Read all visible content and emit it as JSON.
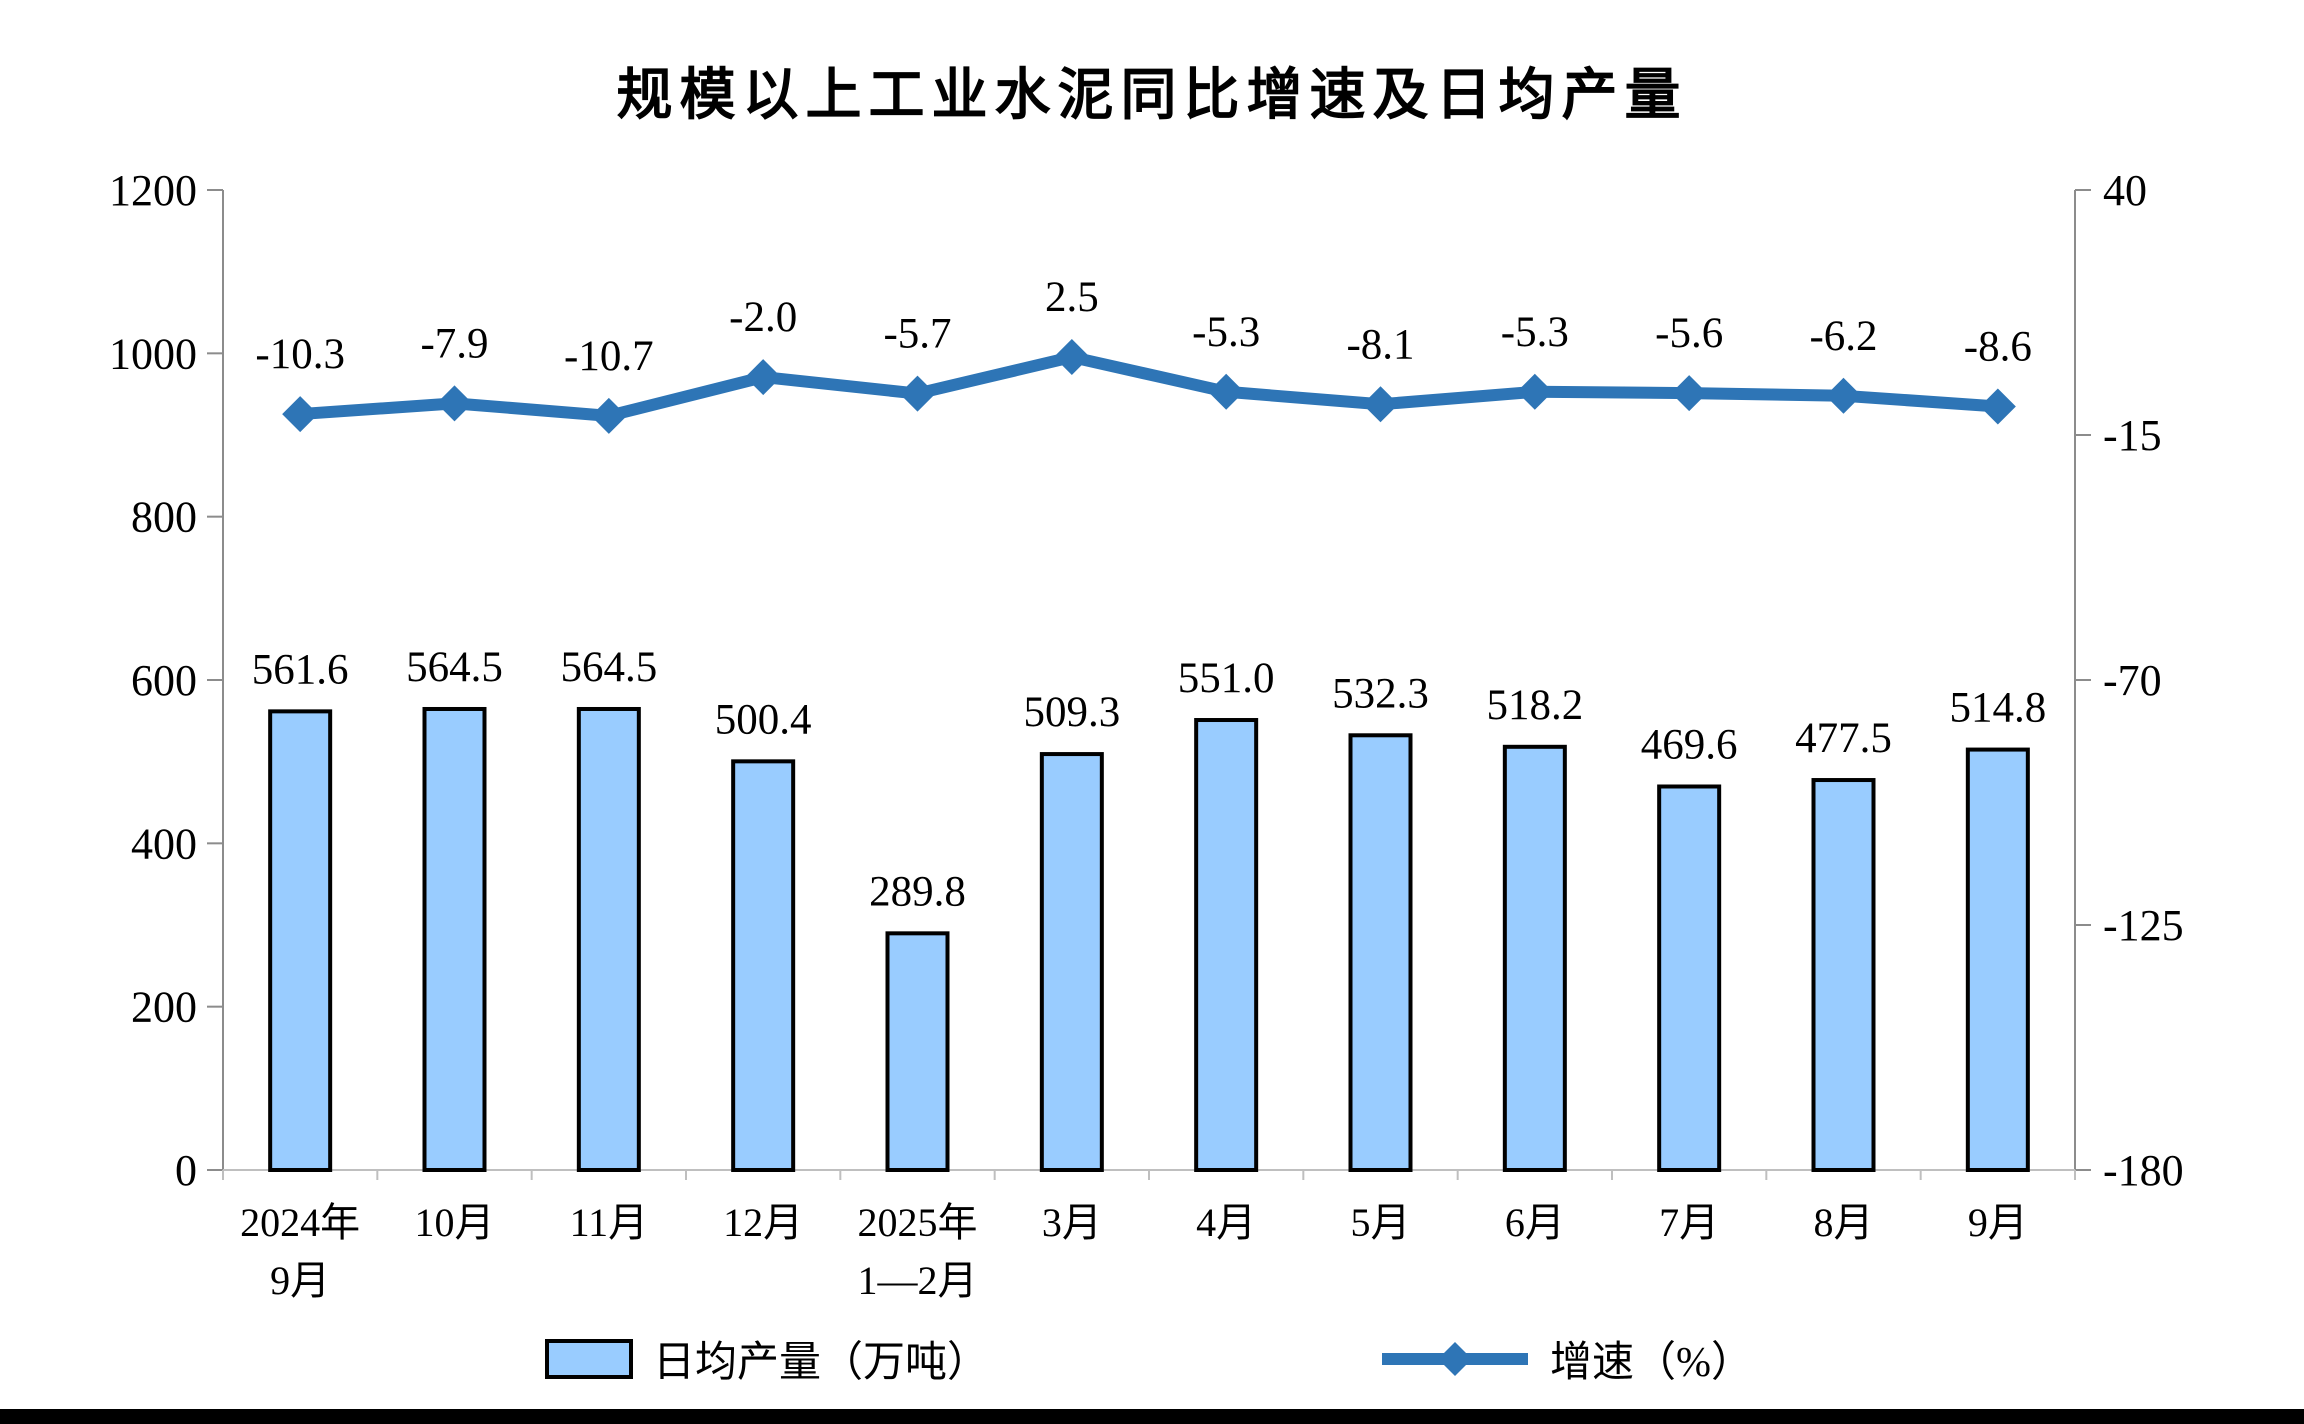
{
  "title": "规模以上工业水泥同比增速及日均产量",
  "legend": {
    "bar_label": "日均产量（万吨）",
    "line_label": "增速（%）"
  },
  "colors": {
    "bar_fill": "#99CCFF",
    "bar_border": "#000000",
    "line": "#2E75B6",
    "side_axis": "#8C8C8C",
    "baseline": "#BFBFBF",
    "text": "#000000"
  },
  "chart_data": {
    "type": "bar",
    "subtype": "combo-bar-line",
    "title": "规模以上工业水泥同比增速及日均产量",
    "categories": [
      [
        "2024年",
        "9月"
      ],
      [
        "10月"
      ],
      [
        "11月"
      ],
      [
        "12月"
      ],
      [
        "2025年",
        "1—2月"
      ],
      [
        "3月"
      ],
      [
        "4月"
      ],
      [
        "5月"
      ],
      [
        "6月"
      ],
      [
        "7月"
      ],
      [
        "8月"
      ],
      [
        "9月"
      ]
    ],
    "series": [
      {
        "name": "日均产量（万吨）",
        "type": "bar",
        "axis": "left",
        "values": [
          561.6,
          564.5,
          564.5,
          500.4,
          289.8,
          509.3,
          551.0,
          532.3,
          518.2,
          469.6,
          477.5,
          514.8
        ]
      },
      {
        "name": "增速（%）",
        "type": "line",
        "axis": "right",
        "values": [
          -10.3,
          -7.9,
          -10.7,
          -2.0,
          -5.7,
          2.5,
          -5.3,
          -8.1,
          -5.3,
          -5.6,
          -6.2,
          -8.6
        ]
      }
    ],
    "left_axis": {
      "min": 0,
      "max": 1200,
      "ticks": [
        1200,
        1000,
        800,
        600,
        400,
        200,
        0
      ]
    },
    "right_axis": {
      "min": -180,
      "max": 40,
      "ticks": [
        40,
        -15,
        -70,
        -125,
        -180
      ]
    },
    "grid": false,
    "legend_position": "bottom",
    "data_labels": true,
    "label_decimals": 1
  }
}
